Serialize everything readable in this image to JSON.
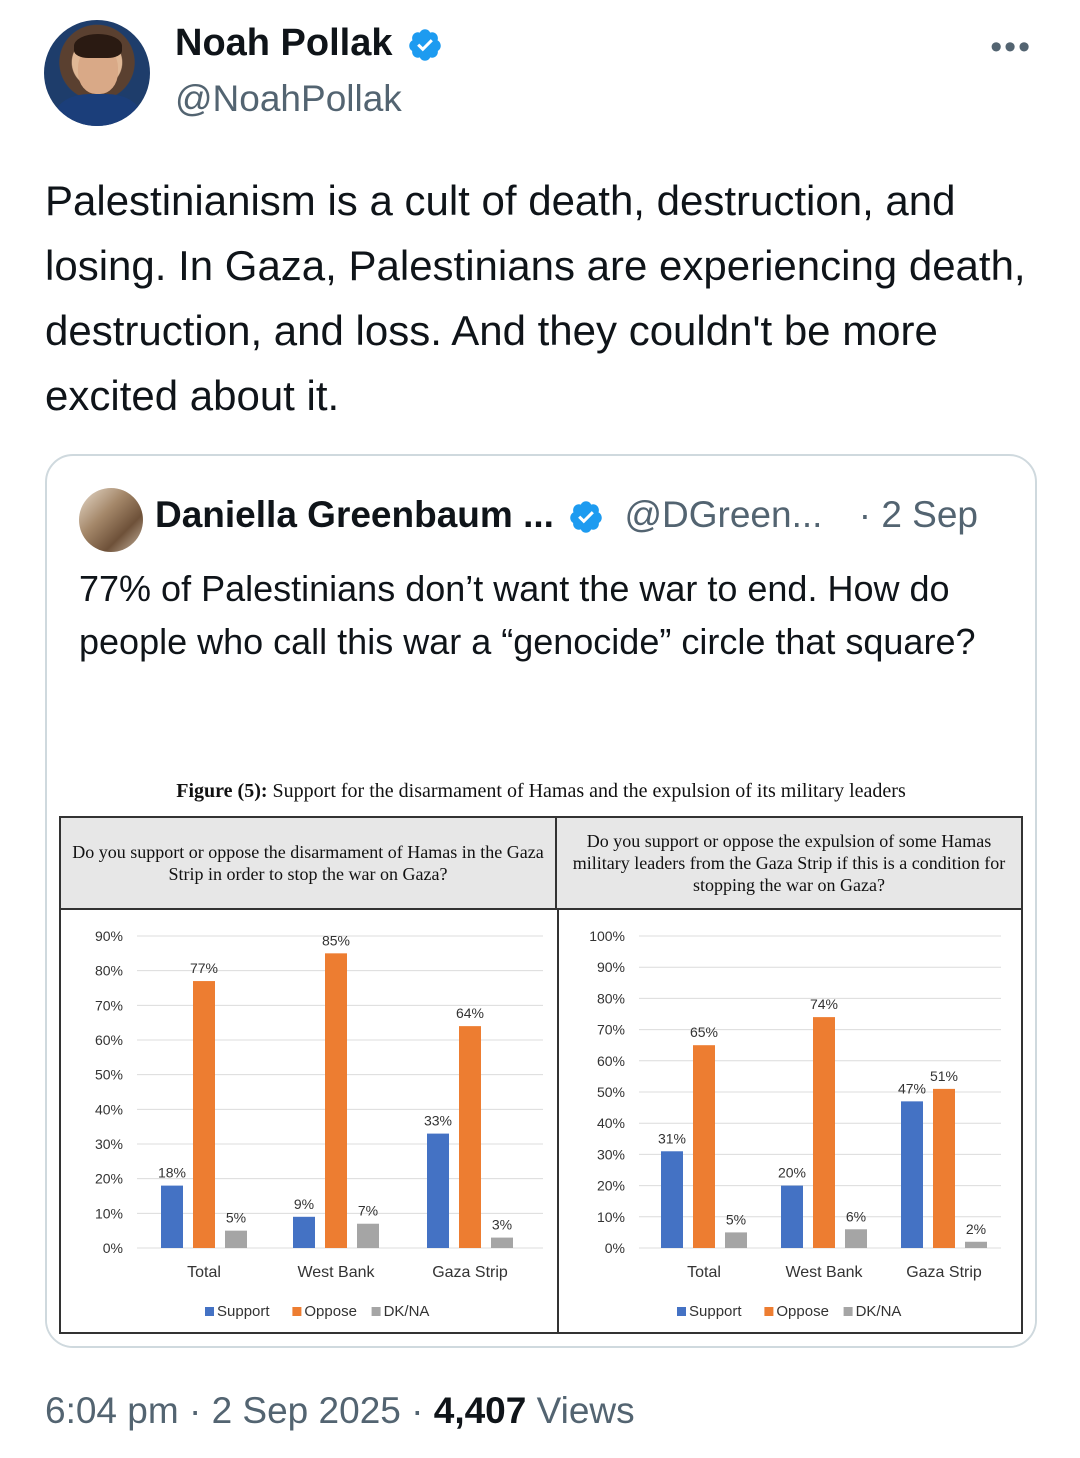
{
  "tweet": {
    "author_name": "Noah Pollak",
    "author_handle": "@NoahPollak",
    "more_label": "•••",
    "text": "Palestinianism is a cult of death, destruction, and losing. In Gaza, Palestinians are experiencing death, destruction, and loss. And they couldn't be more excited about it.",
    "time": "6:04 pm · 2 Sep 2025 · ",
    "views_count": "4,407",
    "views_label": " Views"
  },
  "quote": {
    "author_name": "Daniella Greenbaum ...",
    "author_handle": "@DGreen...",
    "date": "· 2 Sep",
    "text": "77% of Palestinians don’t want the war to end. How do people who call this war a “genocide” circle that square?"
  },
  "figure": {
    "caption_bold": "Figure (5):",
    "caption_rest": " Support for the disarmament of Hamas and the expulsion of its military leaders"
  },
  "colors": {
    "support": "#4472c4",
    "oppose": "#ed7d31",
    "dkna": "#a5a5a5",
    "verified": "#1d9bf0"
  },
  "chart_data": [
    {
      "type": "bar",
      "title": "Do you support or oppose the disarmament of Hamas in the Gaza Strip in order to stop the war on Gaza?",
      "categories": [
        "Total",
        "West Bank",
        "Gaza Strip"
      ],
      "series": [
        {
          "name": "Support",
          "values": [
            18,
            9,
            33
          ]
        },
        {
          "name": "Oppose",
          "values": [
            77,
            85,
            64
          ]
        },
        {
          "name": "DK/NA",
          "values": [
            5,
            7,
            3
          ]
        }
      ],
      "y_ticks": [
        "0%",
        "10%",
        "20%",
        "30%",
        "40%",
        "50%",
        "60%",
        "70%",
        "80%",
        "90%"
      ],
      "ylim": [
        0,
        90
      ],
      "legend": "bottom"
    },
    {
      "type": "bar",
      "title": "Do you support or oppose the expulsion of some Hamas military leaders from the Gaza Strip if this is a condition for stopping the war on Gaza?",
      "categories": [
        "Total",
        "West Bank",
        "Gaza Strip"
      ],
      "series": [
        {
          "name": "Support",
          "values": [
            31,
            20,
            47
          ]
        },
        {
          "name": "Oppose",
          "values": [
            65,
            74,
            51
          ]
        },
        {
          "name": "DK/NA",
          "values": [
            5,
            6,
            2
          ]
        }
      ],
      "y_ticks": [
        "0%",
        "10%",
        "20%",
        "30%",
        "40%",
        "50%",
        "60%",
        "70%",
        "80%",
        "90%",
        "100%"
      ],
      "ylim": [
        0,
        100
      ],
      "legend": "bottom"
    }
  ]
}
